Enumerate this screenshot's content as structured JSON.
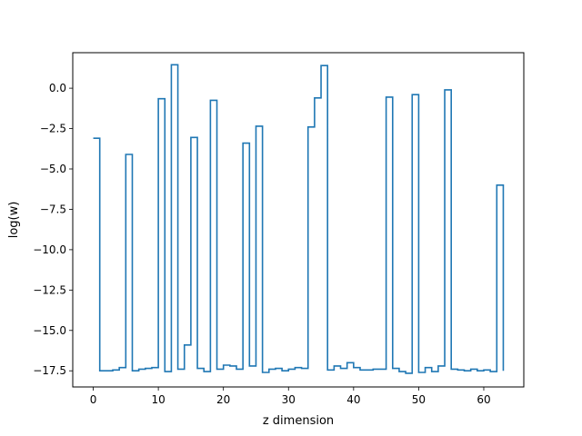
{
  "chart_data": {
    "type": "line",
    "drawstyle": "steps-post",
    "title": "",
    "xlabel": "z dimension",
    "ylabel": "log(w)",
    "xlim": [
      -3.15,
      66.15
    ],
    "ylim": [
      -18.5,
      2.2
    ],
    "xticks": [
      0,
      10,
      20,
      30,
      40,
      50,
      60
    ],
    "yticks": [
      0.0,
      -2.5,
      -5.0,
      -7.5,
      -10.0,
      -12.5,
      -15.0,
      -17.5
    ],
    "ytick_labels": [
      "0.0",
      "−2.5",
      "−5.0",
      "−7.5",
      "−10.0",
      "−12.5",
      "−15.0",
      "−17.5"
    ],
    "grid": false,
    "legend": false,
    "color": "#1f77b4",
    "series": [
      {
        "x": [
          0,
          1,
          2,
          3,
          4,
          5,
          6,
          7,
          8,
          9,
          10,
          11,
          12,
          13,
          14,
          15,
          16,
          17,
          18,
          19,
          20,
          21,
          22,
          23,
          24,
          25,
          26,
          27,
          28,
          29,
          30,
          31,
          32,
          33,
          34,
          35,
          36,
          37,
          38,
          39,
          40,
          41,
          42,
          43,
          44,
          45,
          46,
          47,
          48,
          49,
          50,
          51,
          52,
          53,
          54,
          55,
          56,
          57,
          58,
          59,
          60,
          61,
          62,
          63
        ],
        "values": [
          -3.1,
          -17.5,
          -17.5,
          -17.45,
          -17.3,
          -4.1,
          -17.5,
          -17.4,
          -17.35,
          -17.3,
          -0.65,
          -17.55,
          1.45,
          -17.4,
          -15.9,
          -3.05,
          -17.35,
          -17.55,
          -0.75,
          -17.4,
          -17.15,
          -17.2,
          -17.4,
          -3.4,
          -17.2,
          -2.35,
          -17.6,
          -17.4,
          -17.35,
          -17.5,
          -17.4,
          -17.3,
          -17.35,
          -2.4,
          -0.6,
          1.4,
          -17.45,
          -17.2,
          -17.35,
          -17.0,
          -17.3,
          -17.45,
          -17.45,
          -17.4,
          -17.4,
          -0.55,
          -17.35,
          -17.55,
          -17.65,
          -0.4,
          -17.6,
          -17.3,
          -17.55,
          -17.2,
          -0.1,
          -17.4,
          -17.45,
          -17.5,
          -17.4,
          -17.5,
          -17.45,
          -17.55,
          -6.0,
          -17.5
        ]
      }
    ]
  }
}
